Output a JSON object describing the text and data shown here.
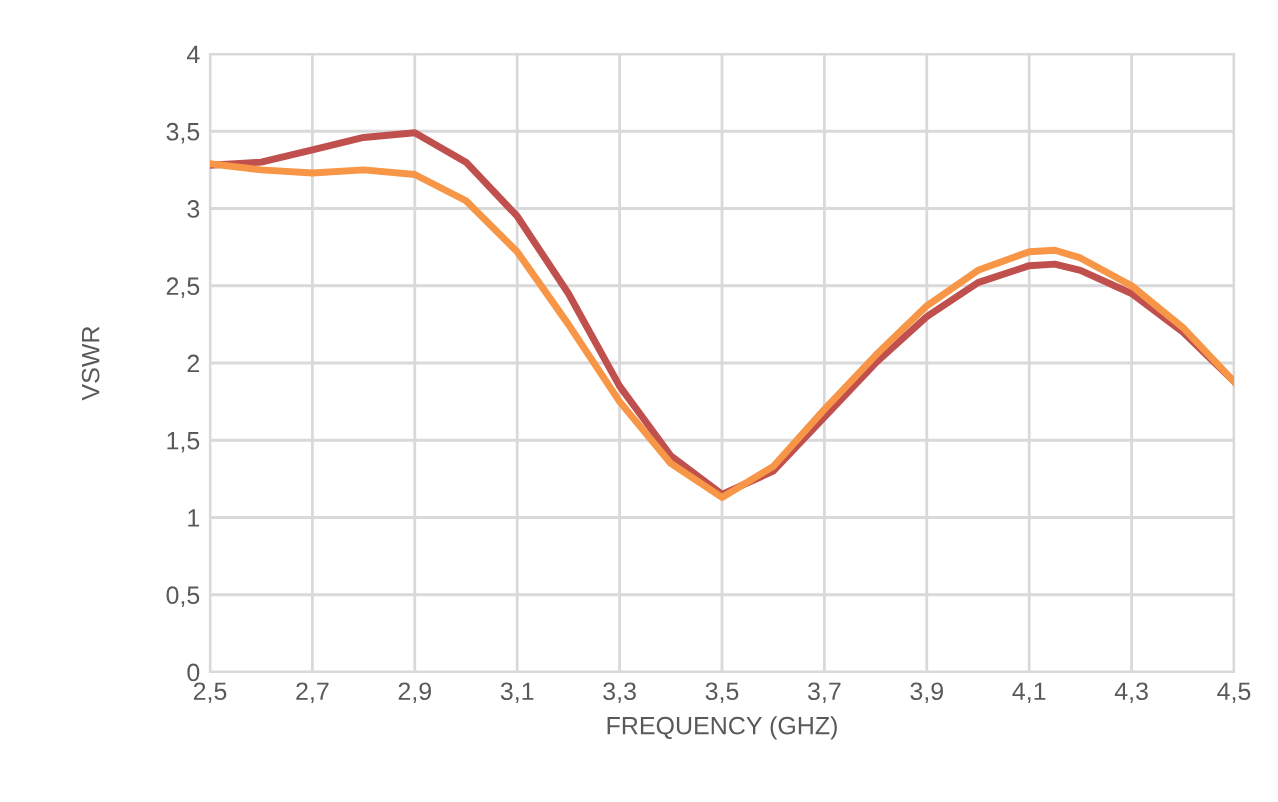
{
  "chart_data": {
    "type": "line",
    "xlabel": "FREQUENCY (GHZ)",
    "ylabel": "VSWR",
    "x": [
      2.5,
      2.6,
      2.7,
      2.8,
      2.9,
      3.0,
      3.1,
      3.2,
      3.3,
      3.4,
      3.5,
      3.6,
      3.7,
      3.8,
      3.9,
      4.0,
      4.1,
      4.15,
      4.2,
      4.3,
      4.4,
      4.5
    ],
    "series": [
      {
        "color": "#c0504d",
        "values": [
          3.28,
          3.3,
          3.38,
          3.46,
          3.49,
          3.3,
          2.95,
          2.45,
          1.85,
          1.4,
          1.15,
          1.3,
          1.65,
          2.0,
          2.3,
          2.52,
          2.63,
          2.64,
          2.6,
          2.45,
          2.2,
          1.88
        ]
      },
      {
        "color": "#f79646",
        "values": [
          3.29,
          3.25,
          3.23,
          3.25,
          3.22,
          3.05,
          2.72,
          2.25,
          1.75,
          1.35,
          1.13,
          1.33,
          1.7,
          2.05,
          2.37,
          2.6,
          2.72,
          2.73,
          2.68,
          2.5,
          2.23,
          1.88
        ]
      }
    ],
    "xlim": [
      2.5,
      4.5
    ],
    "xticks": [
      {
        "value": 2.5,
        "label": "2,5"
      },
      {
        "value": 2.7,
        "label": "2,7"
      },
      {
        "value": 2.9,
        "label": "2,9"
      },
      {
        "value": 3.1,
        "label": "3,1"
      },
      {
        "value": 3.3,
        "label": "3,3"
      },
      {
        "value": 3.5,
        "label": "3,5"
      },
      {
        "value": 3.7,
        "label": "3,7"
      },
      {
        "value": 3.9,
        "label": "3,9"
      },
      {
        "value": 4.1,
        "label": "4,1"
      },
      {
        "value": 4.3,
        "label": "4,3"
      },
      {
        "value": 4.5,
        "label": "4,5"
      }
    ],
    "ylim": [
      0,
      4
    ],
    "yticks": [
      0,
      {
        "value": 0.5,
        "label": "0,5"
      },
      1,
      {
        "value": 1.5,
        "label": "1,5"
      },
      2,
      {
        "value": 2.5,
        "label": "2,5"
      },
      3,
      {
        "value": 3.5,
        "label": "3,5"
      },
      4
    ],
    "grid": true,
    "marker": "none",
    "line_style": "solid"
  }
}
